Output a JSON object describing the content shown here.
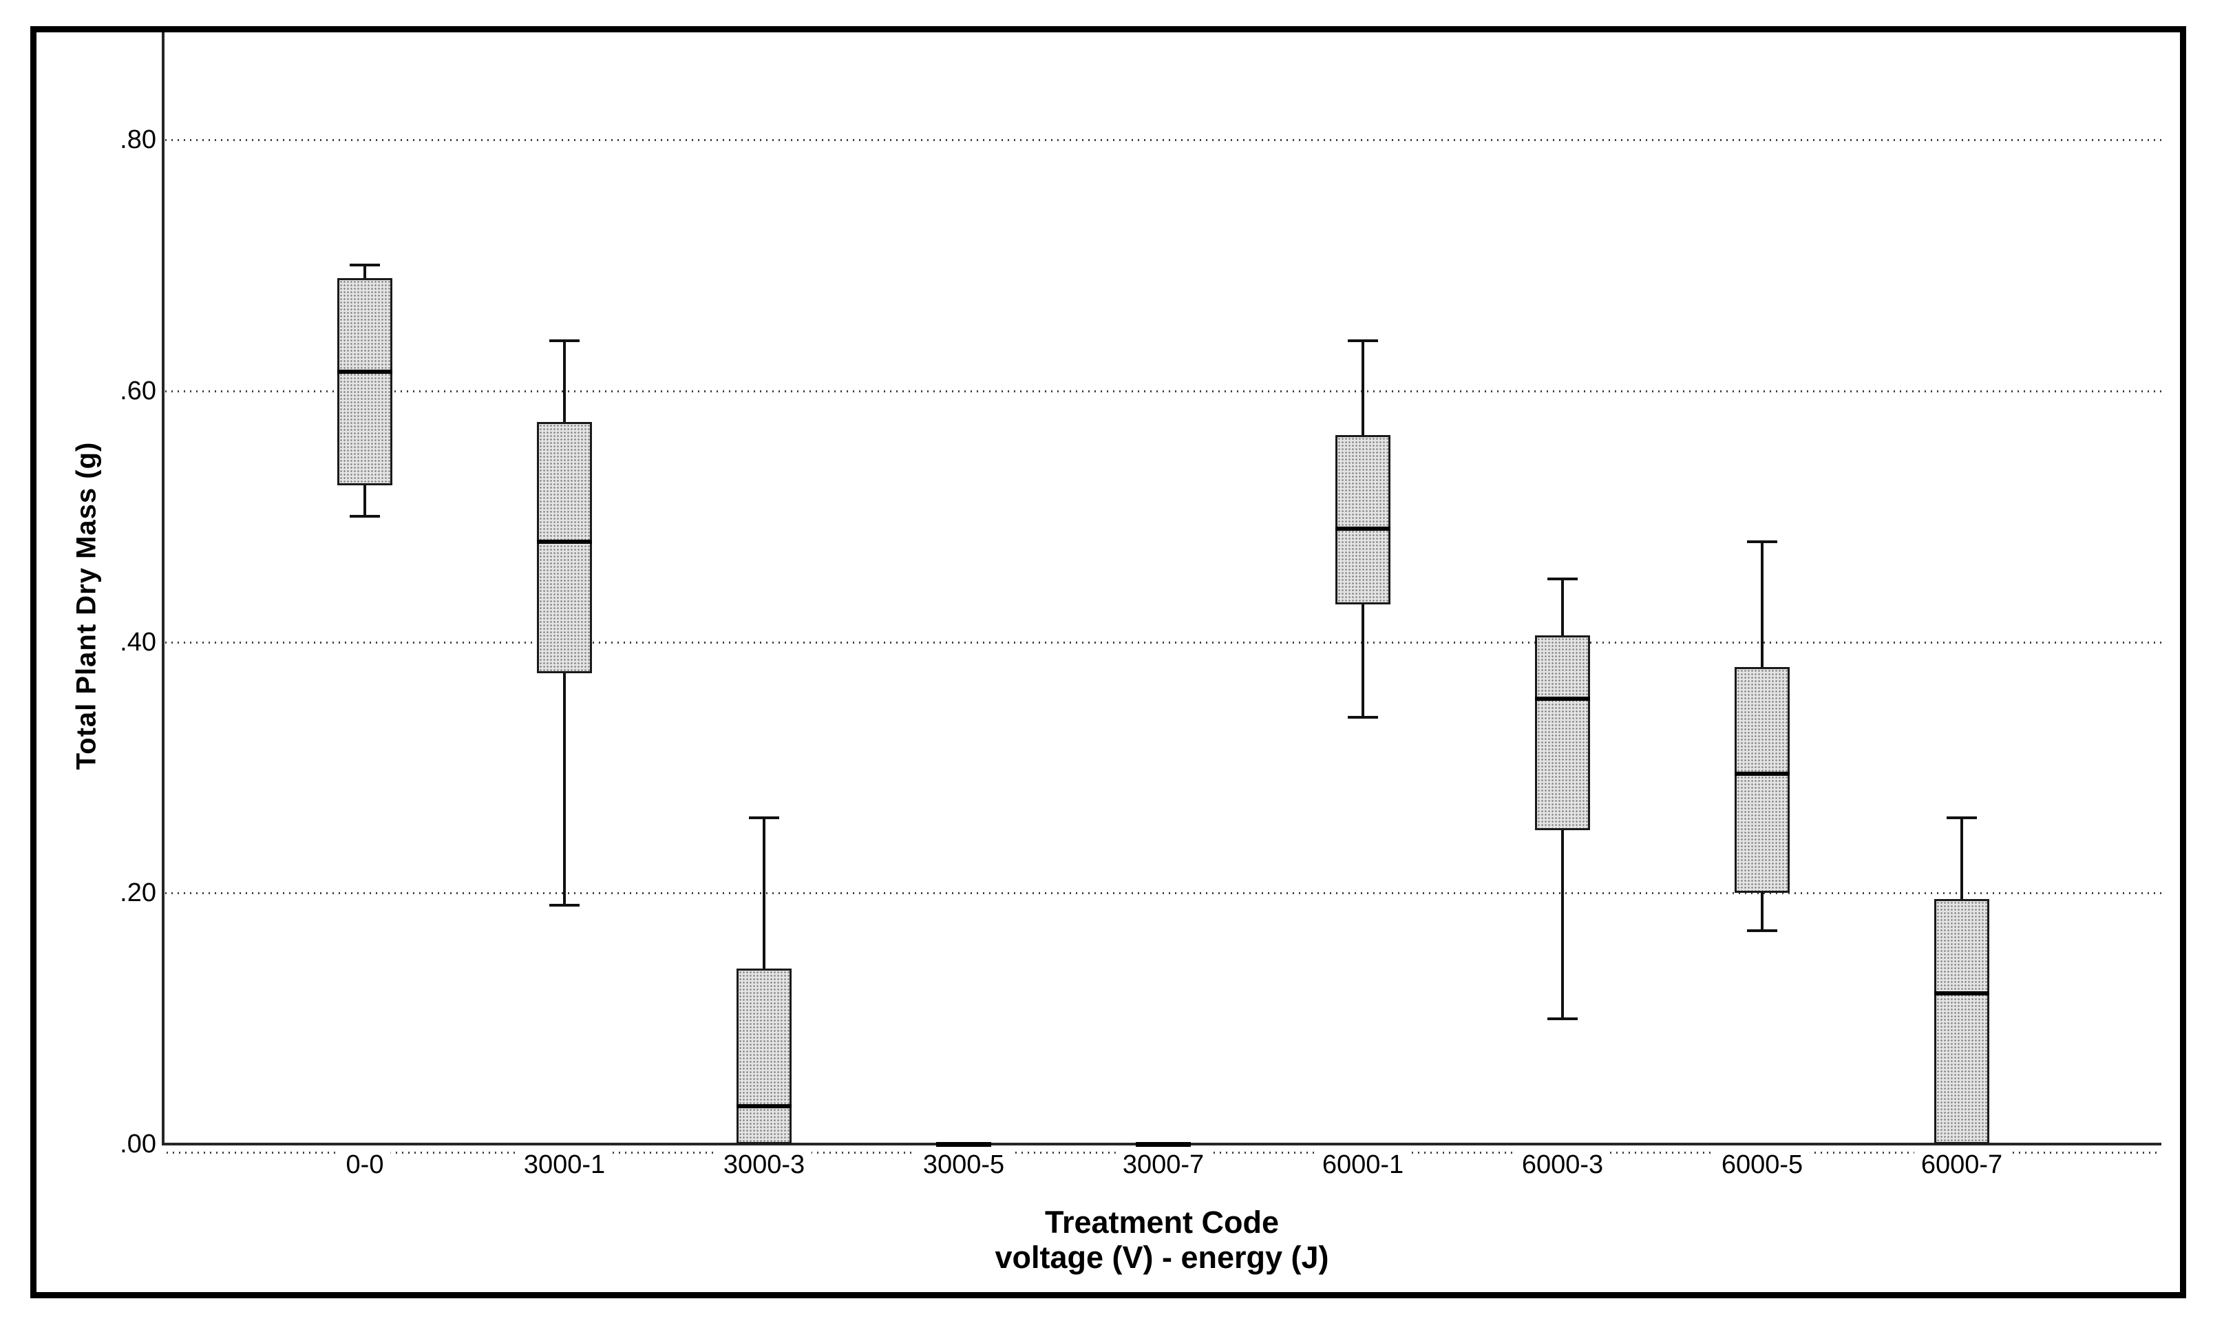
{
  "window": {
    "background": "#ffffff"
  },
  "chart_data": {
    "type": "boxplot",
    "title": "",
    "ylabel": "Total Plant Dry Mass (g)",
    "xlabel": {
      "line1": "Treatment Code",
      "line2": "voltage (V) - energy (J)"
    },
    "x_axis_categories": [
      "0-0",
      "3000-1",
      "3000-3",
      "3000-5",
      "3000-7",
      "6000-1",
      "6000-3",
      "6000-5",
      "6000-7"
    ],
    "y_axis": {
      "ticks": [
        {
          "label": ".00",
          "value": 0.0
        },
        {
          "label": ".20",
          "value": 0.2
        },
        {
          "label": ".40",
          "value": 0.4
        },
        {
          "label": ".60",
          "value": 0.6
        },
        {
          "label": ".80",
          "value": 0.8
        }
      ],
      "range": [
        0.0,
        0.885
      ],
      "grid": "dotted horizontal lines at labeled ticks"
    },
    "boxes": [
      {
        "category": "0-0",
        "whisker_low": 0.5,
        "q1": 0.525,
        "median": 0.615,
        "q3": 0.69,
        "whisker_high": 0.7,
        "flat": false
      },
      {
        "category": "3000-1",
        "whisker_low": 0.19,
        "q1": 0.375,
        "median": 0.48,
        "q3": 0.575,
        "whisker_high": 0.64,
        "flat": false
      },
      {
        "category": "3000-3",
        "whisker_low": null,
        "q1": 0.0,
        "median": 0.03,
        "q3": 0.14,
        "whisker_high": 0.26,
        "flat": false
      },
      {
        "category": "3000-5",
        "whisker_low": 0.0,
        "q1": 0.0,
        "median": 0.0,
        "q3": 0.0,
        "whisker_high": 0.0,
        "flat": true
      },
      {
        "category": "3000-7",
        "whisker_low": 0.0,
        "q1": 0.0,
        "median": 0.0,
        "q3": 0.0,
        "whisker_high": 0.0,
        "flat": true
      },
      {
        "category": "6000-1",
        "whisker_low": 0.34,
        "q1": 0.43,
        "median": 0.49,
        "q3": 0.565,
        "whisker_high": 0.64,
        "flat": false
      },
      {
        "category": "6000-3",
        "whisker_low": 0.1,
        "q1": 0.25,
        "median": 0.355,
        "q3": 0.405,
        "whisker_high": 0.45,
        "flat": false
      },
      {
        "category": "6000-5",
        "whisker_low": 0.17,
        "q1": 0.2,
        "median": 0.295,
        "q3": 0.38,
        "whisker_high": 0.48,
        "flat": false
      },
      {
        "category": "6000-7",
        "whisker_low": null,
        "q1": 0.0,
        "median": 0.12,
        "q3": 0.195,
        "whisker_high": 0.26,
        "flat": false
      }
    ],
    "colors": {
      "background": "#ffffff",
      "frame": "#000000",
      "axis": "#262626",
      "grid_dot": "#3f3f3f",
      "box_border": "#1a1a1a",
      "box_fill": "#e3e3e3",
      "box_fill_dot": "#8c8c8c",
      "median": "#000000",
      "whisker": "#111111",
      "text": "#000000"
    }
  }
}
